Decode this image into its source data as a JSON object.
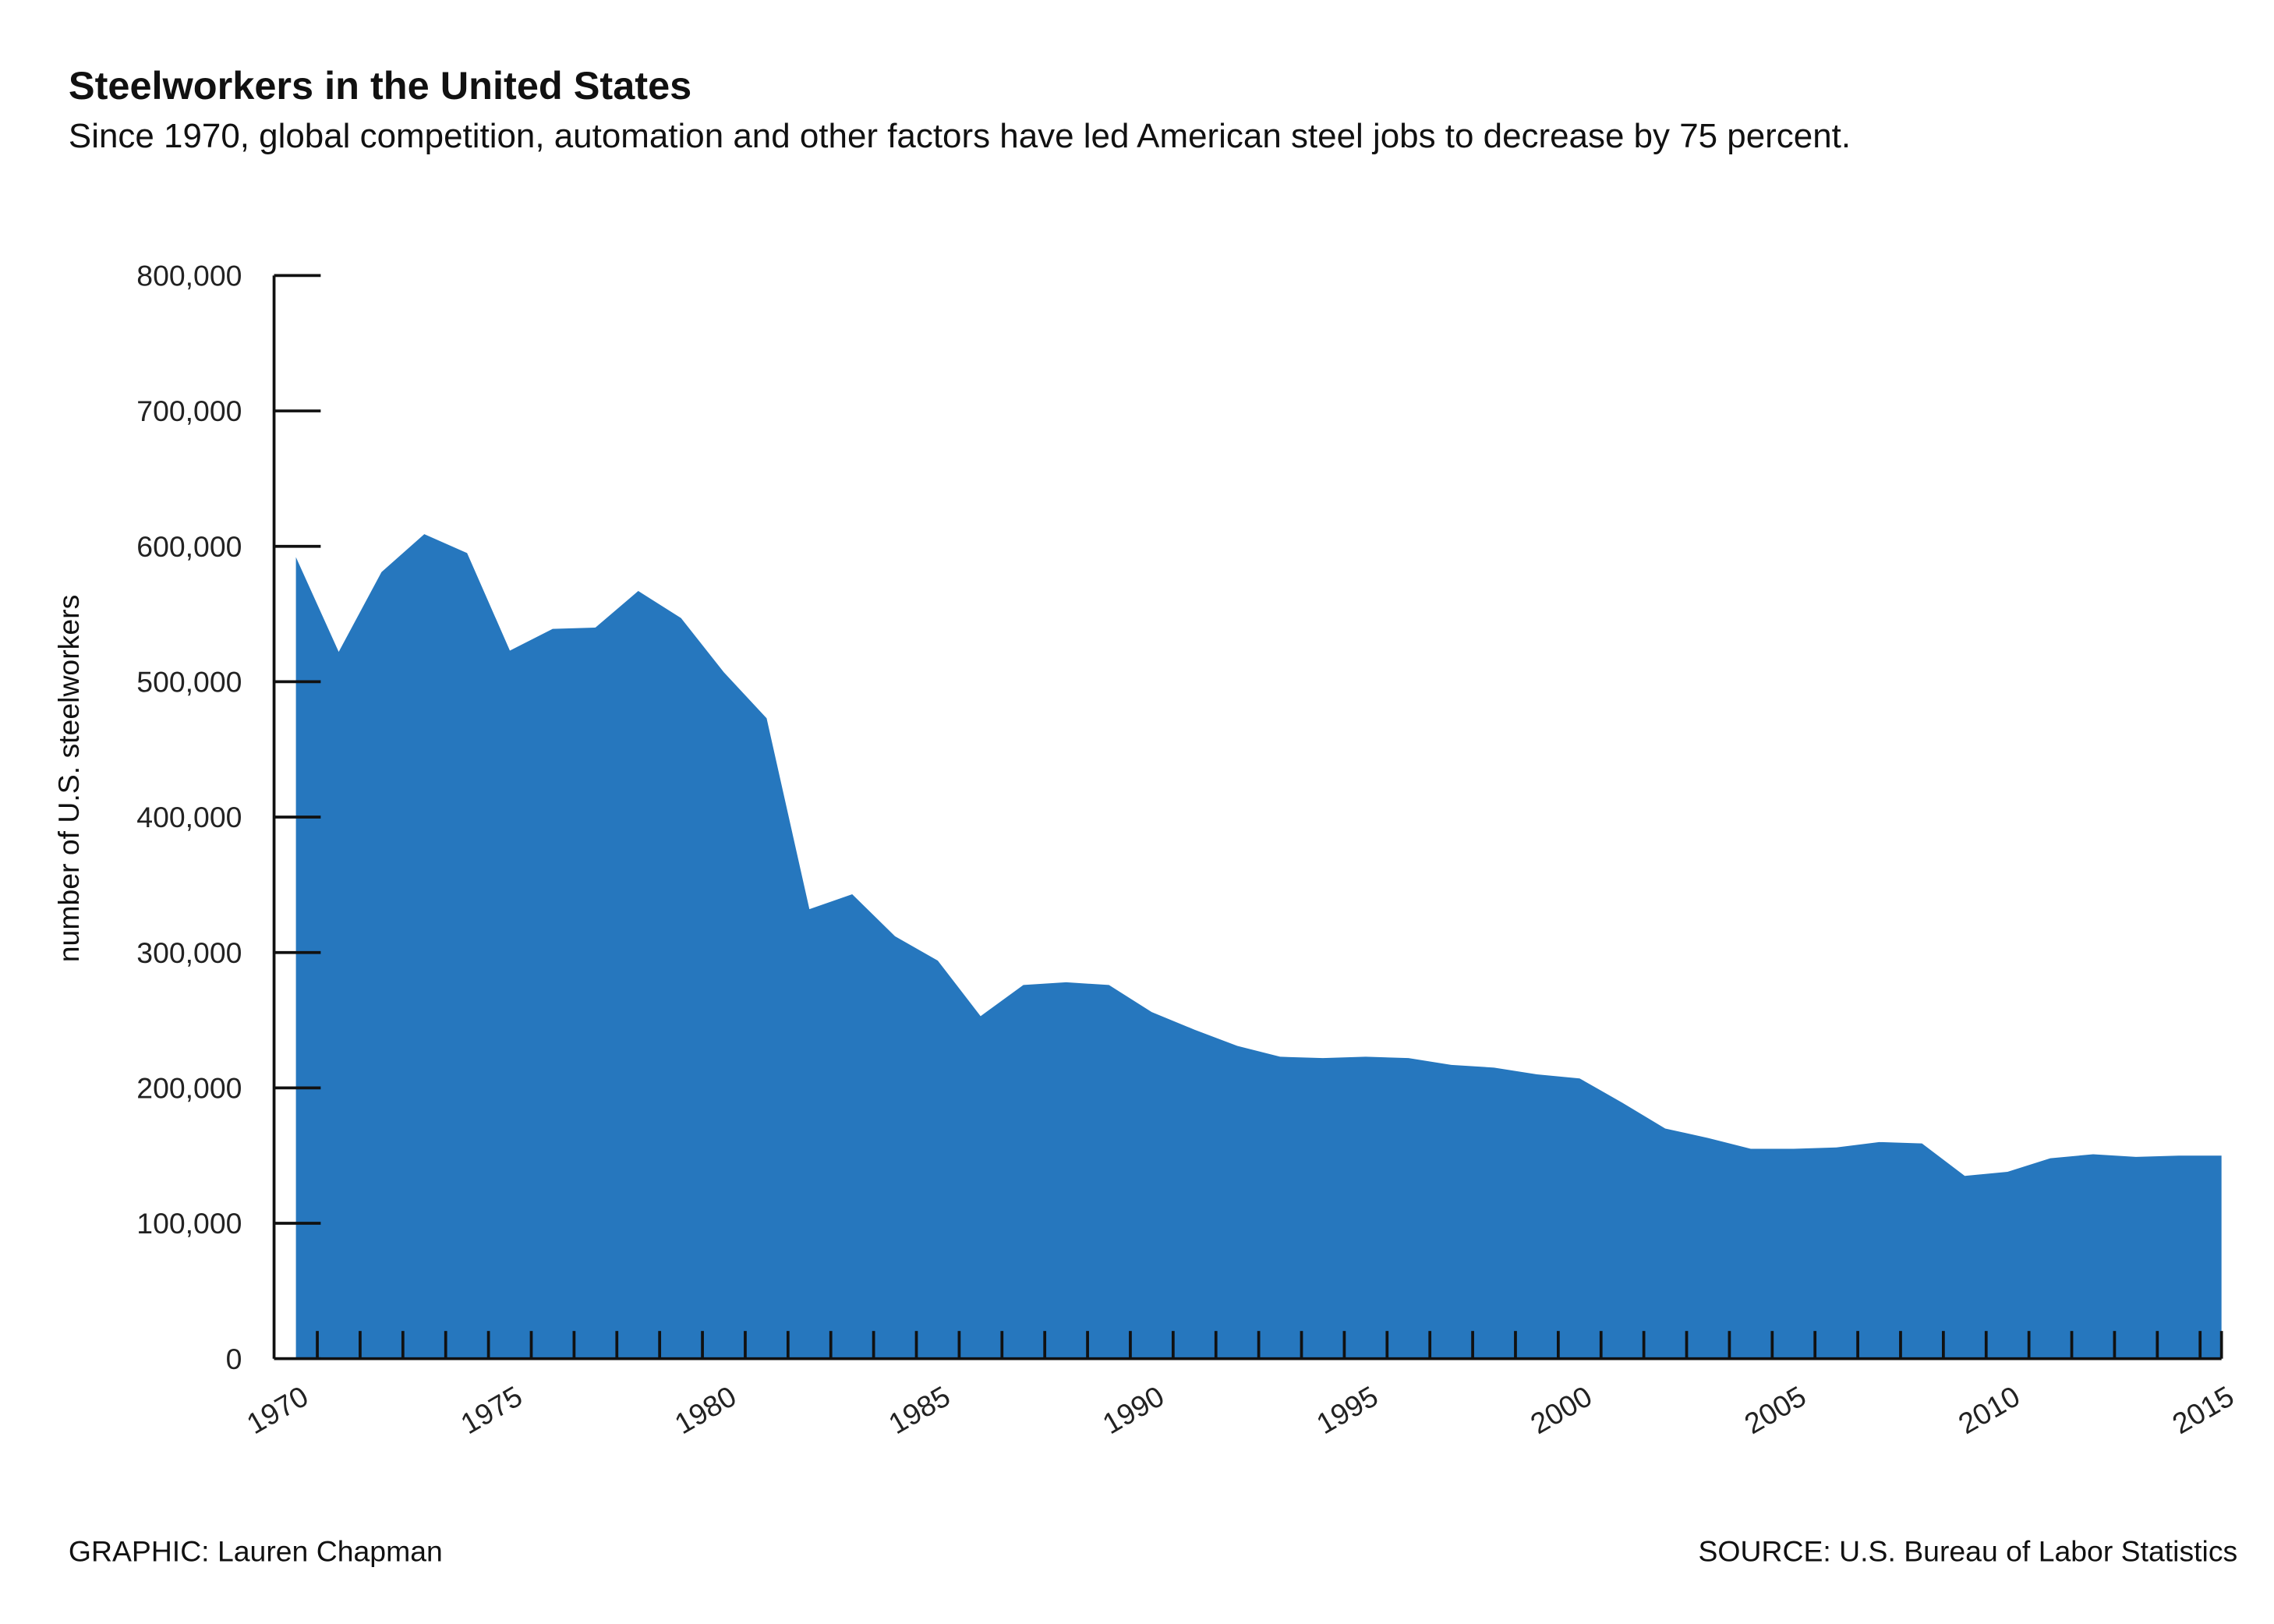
{
  "chart_data": {
    "type": "area",
    "title": "Steelworkers in the United States",
    "subtitle": "Since 1970, global competition, automation and other factors have led American steel jobs to decrease by 75 percent.",
    "y_label": "number of U.S. steelworkers",
    "credit": "GRAPHIC: Lauren Chapman",
    "source": "SOURCE: U.S. Bureau of Labor Statistics",
    "x": [
      1970,
      1971,
      1972,
      1973,
      1974,
      1975,
      1976,
      1977,
      1978,
      1979,
      1980,
      1981,
      1982,
      1983,
      1984,
      1985,
      1986,
      1987,
      1988,
      1989,
      1990,
      1991,
      1992,
      1993,
      1994,
      1995,
      1996,
      1997,
      1998,
      1999,
      2000,
      2001,
      2002,
      2003,
      2004,
      2005,
      2006,
      2007,
      2008,
      2009,
      2010,
      2011,
      2012,
      2013,
      2014,
      2015
    ],
    "series": [
      {
        "name": "steelworkers",
        "color": "#2677be",
        "values": [
          592000,
          522000,
          581000,
          609000,
          595000,
          523000,
          539000,
          540000,
          567000,
          547000,
          507000,
          473000,
          332000,
          343000,
          312000,
          294000,
          253000,
          276000,
          278000,
          276000,
          256000,
          243000,
          231000,
          223000,
          222000,
          223000,
          222000,
          217000,
          215000,
          210000,
          207000,
          189000,
          170000,
          163000,
          155000,
          155000,
          156000,
          160000,
          159000,
          135000,
          138000,
          148000,
          151000,
          149000,
          150000,
          150000
        ]
      }
    ],
    "xlim": [
      1970,
      2015
    ],
    "xticks": [
      1970,
      1975,
      1980,
      1985,
      1990,
      1995,
      2000,
      2005,
      2010,
      2015
    ],
    "ylim": [
      0,
      800000
    ],
    "yticks": [
      0,
      {
        "value": 100000,
        "label": "100,000"
      },
      {
        "value": 200000,
        "label": "200,000"
      },
      {
        "value": 300000,
        "label": "300,000"
      },
      {
        "value": 400000,
        "label": "400,000"
      },
      {
        "value": 500000,
        "label": "500,000"
      },
      {
        "value": 600000,
        "label": "600,000"
      },
      {
        "value": 700000,
        "label": "700,000"
      },
      {
        "value": 800000,
        "label": "800,000"
      }
    ]
  }
}
